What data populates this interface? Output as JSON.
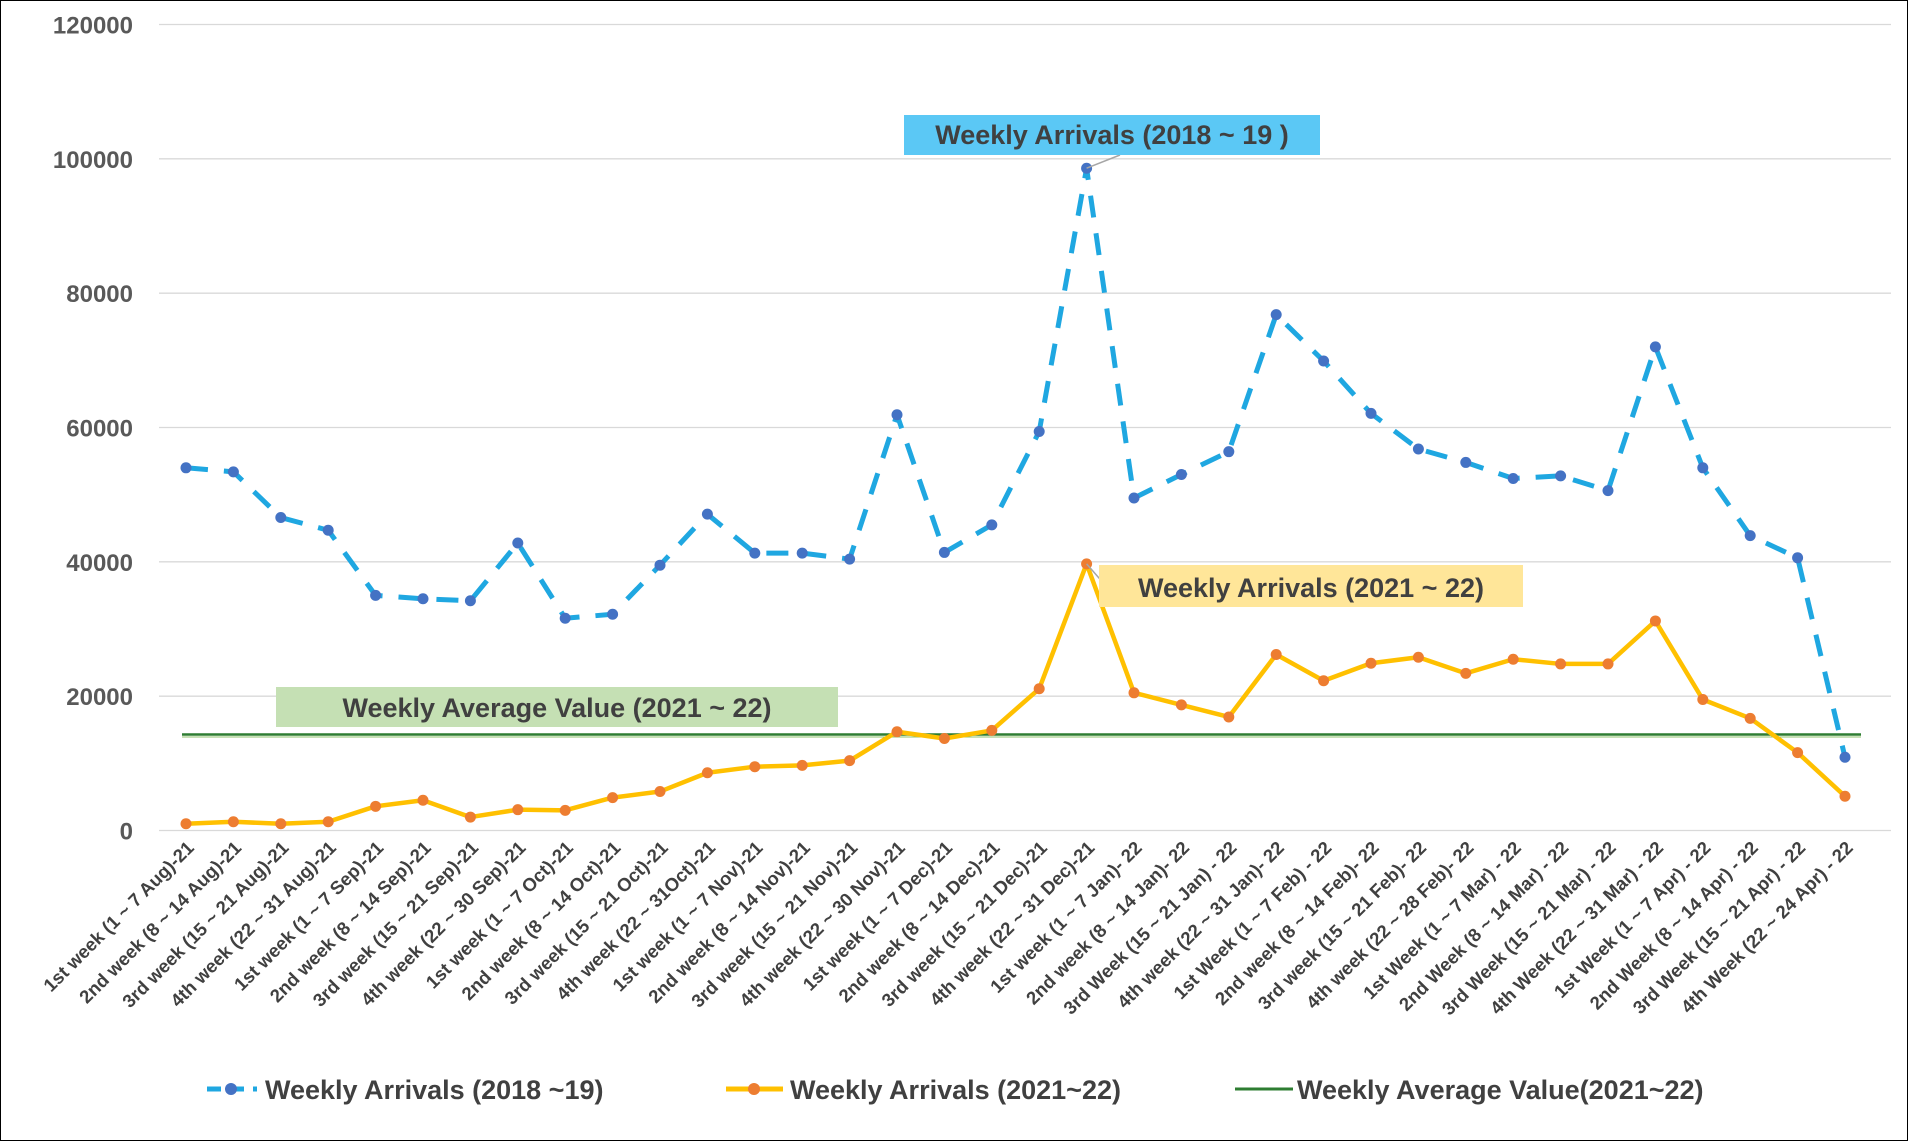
{
  "chart_data": {
    "type": "line",
    "title": "",
    "xlabel": "",
    "ylabel": "",
    "ylim": [
      0,
      120000
    ],
    "yticks": [
      0,
      20000,
      40000,
      60000,
      80000,
      100000,
      120000
    ],
    "grid": "horizontal",
    "legend_placement": "bottom",
    "categories": [
      "1st week (1 ~ 7 Aug)-21",
      "2nd week (8 ~ 14 Aug)-21",
      "3rd week (15 ~ 21 Aug)-21",
      "4th week (22 ~ 31 Aug)-21",
      "1st week (1 ~ 7 Sep)-21",
      "2nd week (8 ~ 14 Sep)-21",
      "3rd week (15 ~ 21 Sep)-21",
      "4th week (22 ~ 30 Sep)-21",
      "1st week (1 ~ 7 Oct)-21",
      "2nd week (8 ~ 14 Oct)-21",
      "3rd week (15 ~ 21 Oct)-21",
      "4th week (22 ~ 31Oct)-21",
      "1st week (1 ~ 7 Nov)-21",
      "2nd week (8 ~ 14 Nov)-21",
      "3rd week (15 ~ 21 Nov)-21",
      "4th week (22 ~ 30 Nov)-21",
      "1st week (1 ~ 7 Dec)-21",
      "2nd week (8 ~ 14 Dec)-21",
      "3rd week (15 ~ 21 Dec)-21",
      "4th week (22 ~ 31 Dec)-21",
      "1st week (1 ~ 7 Jan)- 22",
      "2nd week (8 ~ 14 Jan)- 22",
      "3rd Week (15 ~ 21 Jan) - 22",
      "4th week (22 ~ 31 Jan)- 22",
      "1st Week (1 ~ 7 Feb) - 22",
      "2nd week (8 ~ 14 Feb)- 22",
      "3rd week (15 ~ 21 Feb)- 22",
      "4th week (22 ~ 28 Feb)- 22",
      "1st Week (1 ~ 7 Mar) - 22",
      "2nd Week (8 ~ 14 Mar) - 22",
      "3rd Week (15 ~ 21 Mar) - 22",
      "4th Week (22 ~ 31 Mar) - 22",
      "1st Week (1 ~ 7 Apr) - 22",
      "2nd Week (8 ~ 14 Apr) - 22",
      "3rd Week (15 ~ 21 Apr) - 22",
      "4th Week (22 ~ 24 Apr) - 22"
    ],
    "series": [
      {
        "name": "Weekly  Arrivals (2018 ~19)",
        "color": "#1FA7E1",
        "marker_color": "#4472C4",
        "style": "dashed-markers",
        "values": [
          54000,
          53400,
          46600,
          44700,
          35000,
          34500,
          34200,
          42800,
          31600,
          32200,
          39500,
          47100,
          41300,
          41300,
          40400,
          61900,
          41400,
          45500,
          59400,
          98600,
          49500,
          53000,
          56400,
          76800,
          69900,
          62100,
          56800,
          54800,
          52400,
          52800,
          50600,
          72000,
          54000,
          43900,
          40600,
          10900
        ]
      },
      {
        "name": "Weekly Arrivals (2021~22)",
        "color": "#FFC000",
        "marker_color": "#ED7D31",
        "style": "solid-markers",
        "values": [
          1000,
          1300,
          1000,
          1300,
          3600,
          4500,
          2000,
          3100,
          3000,
          4900,
          5800,
          8600,
          9500,
          9700,
          10400,
          14700,
          13700,
          14900,
          21100,
          39700,
          20500,
          18700,
          16900,
          26200,
          22300,
          24900,
          25800,
          23400,
          25500,
          24800,
          24800,
          31200,
          19500,
          16700,
          11600,
          5100
        ]
      },
      {
        "name": "Weekly Average Value(2021~22)",
        "color": "#2E7D32",
        "style": "flat-line",
        "value": 14300
      }
    ],
    "annotations": [
      {
        "text": "Weekly Arrivals (2018 ~ 19 )",
        "bg": "#5BC8F5"
      },
      {
        "text": "Weekly Arrivals (2021 ~ 22)",
        "bg": "#FFE699"
      },
      {
        "text": "Weekly Average Value (2021 ~ 22)",
        "bg": "#C5E0B4"
      }
    ]
  }
}
